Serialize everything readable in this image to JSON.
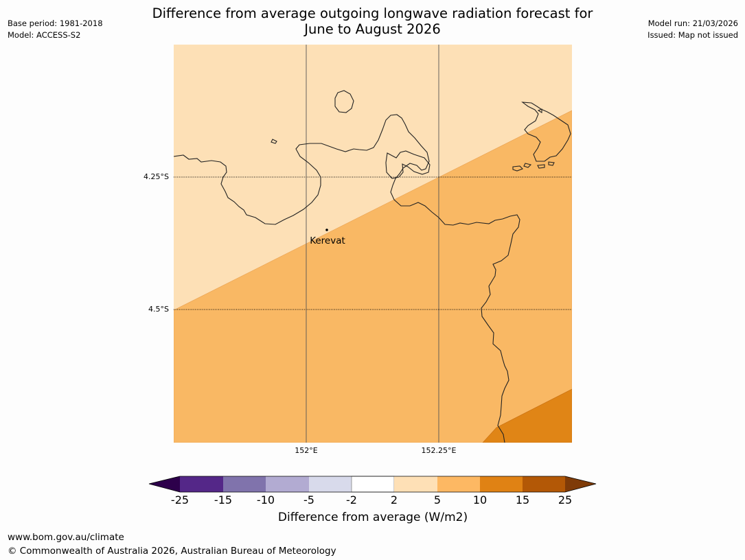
{
  "header": {
    "title_line1": "Difference from average outgoing longwave radiation forecast for",
    "title_line2": "June to August 2026",
    "base_period": "Base period: 1981-2018",
    "model": "Model: ACCESS-S2",
    "model_run": "Model run: 21/03/2026",
    "issued": "Issued: Map not issued"
  },
  "map": {
    "latitude_labels": [
      "4.25°S",
      "4.5°S"
    ],
    "longitude_labels": [
      "152°E",
      "152.25°E"
    ],
    "place_label": "Kerevat",
    "fill_colors": {
      "band_2_5": "#fde0b6",
      "band_5_10": "#f9b864",
      "band_10_15": "#e08516"
    }
  },
  "colorbar": {
    "ticks": [
      "-25",
      "-15",
      "-10",
      "-5",
      "-2",
      "2",
      "5",
      "10",
      "15",
      "25"
    ],
    "colors": [
      "#542788",
      "#8073ac",
      "#b2abd2",
      "#d8daeb",
      "#ffffff",
      "#fee0b6",
      "#fdb863",
      "#e08214",
      "#b35806"
    ],
    "under_color": "#2d004b",
    "over_color": "#7f3b08",
    "label": "Difference from average (W/m2)"
  },
  "footer": {
    "url": "www.bom.gov.au/climate",
    "copyright": "© Commonwealth of Australia 2026, Australian Bureau of Meteorology"
  }
}
